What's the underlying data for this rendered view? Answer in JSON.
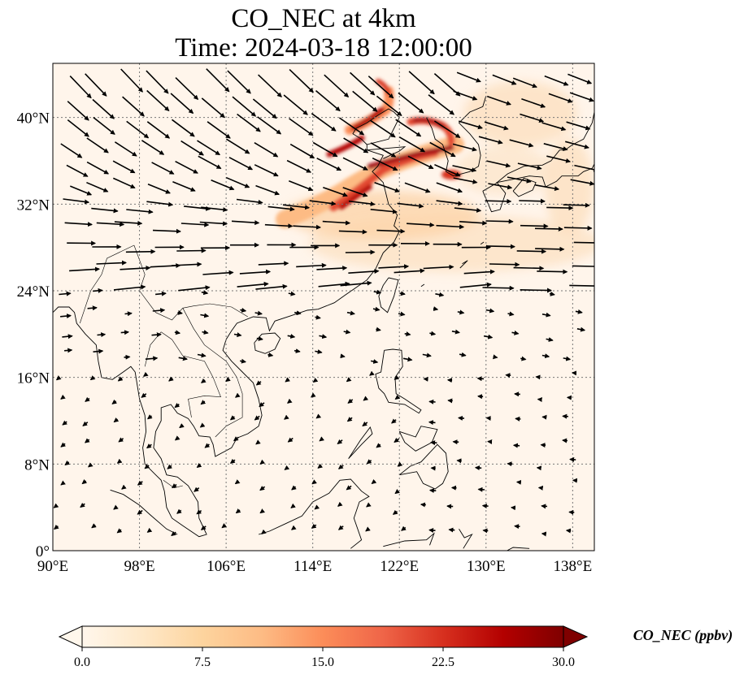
{
  "title": {
    "line1": "CO_NEC at 4km",
    "line2": "Time: 2024-03-18 12:00:00"
  },
  "map": {
    "lon_range": [
      90,
      140
    ],
    "lat_range": [
      0,
      45
    ],
    "x_ticks": [
      "90°E",
      "98°E",
      "106°E",
      "114°E",
      "122°E",
      "130°E",
      "138°E"
    ],
    "x_tick_values": [
      90,
      98,
      106,
      114,
      122,
      130,
      138
    ],
    "y_ticks": [
      "0°",
      "8°N",
      "16°N",
      "24°N",
      "32°N",
      "40°N"
    ],
    "y_tick_values": [
      0,
      8,
      16,
      24,
      32,
      40
    ],
    "gridlines": "dotted",
    "background_color": "#fff5eb",
    "coastline_color": "#000000",
    "wind_vector_color": "#000000"
  },
  "colorbar": {
    "label": "CO_NEC (ppbv)",
    "ticks": [
      "0.0",
      "7.5",
      "15.0",
      "22.5",
      "30.0"
    ],
    "tick_values": [
      0,
      7.5,
      15,
      22.5,
      30
    ],
    "range": [
      0,
      30
    ],
    "extend": "both",
    "colormap": "OrRd",
    "colors": [
      "#fff7ec",
      "#fee8c8",
      "#fdd49e",
      "#fdbb84",
      "#fc8d59",
      "#ef6548",
      "#d7301f",
      "#b30000",
      "#7f0000"
    ]
  },
  "fields": {
    "plume_description_color_high": "#8b0000",
    "plume_color_mid": "#e34a33",
    "plume_color_low": "#fdbb84"
  }
}
